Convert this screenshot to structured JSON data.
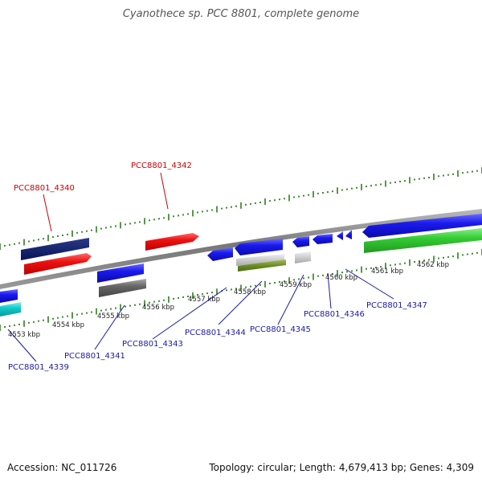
{
  "title": "Cyanothece sp. PCC 8801, complete genome",
  "footer": {
    "accession": "Accession: NC_011726",
    "topology": "Topology: circular; Length: 4,679,413 bp; Genes: 4,309"
  },
  "ruler": {
    "labels": [
      "4553 kbp",
      "4554 kbp",
      "4555 kbp",
      "4556 kbp",
      "4557 kbp",
      "4558 kbp",
      "4559 kbp",
      "4560 kbp",
      "4561 kbp",
      "4562 kbp"
    ],
    "tick_color": "#2e7d1e"
  },
  "gene_labels": {
    "red": [
      "PCC8801_4340",
      "PCC8801_4342"
    ],
    "blue": [
      "PCC8801_4339",
      "PCC8801_4341",
      "PCC8801_4343",
      "PCC8801_4344",
      "PCC8801_4345",
      "PCC8801_4346",
      "PCC8801_4347"
    ]
  },
  "colors": {
    "red_label": "#cc0000",
    "blue_label": "#1a1aaa",
    "backbone": "#888888",
    "navy_feature": "#0b1a66",
    "red_feature": "#ee1111",
    "blue_feature": "#1a1aee",
    "cyan_feature": "#11cccc",
    "green_feature": "#33cc33",
    "olive_feature": "#6b8e23",
    "gray_feature": "#666666"
  }
}
